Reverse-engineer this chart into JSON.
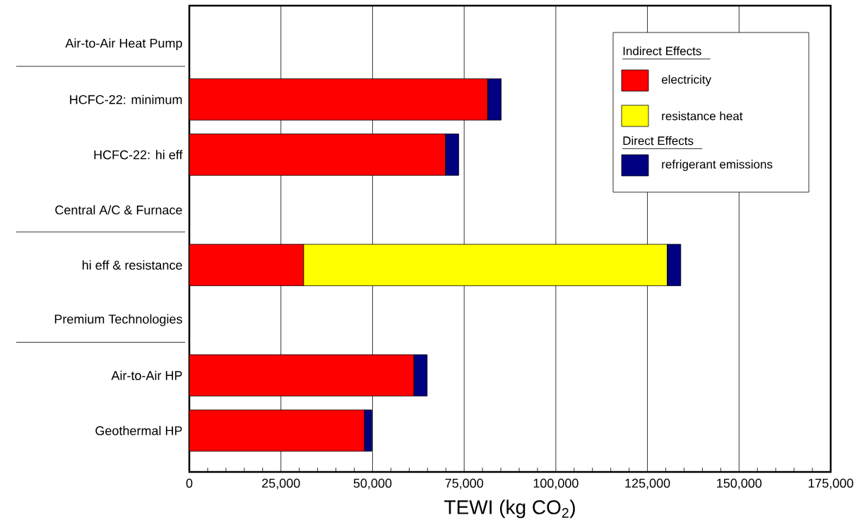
{
  "chart_data": {
    "type": "bar",
    "orientation": "horizontal",
    "stacked": true,
    "xlabel": "TEWI (kg CO$_{2}$)",
    "legend_title": "Indirect Effects",
    "annotations": [
      "Direct Effects"
    ],
    "categories": [
      "Air-to-Air Heat Pump",
      "HCFC-22: minimum",
      "HCFC-22: hi eff",
      "Central A/C & Furnace",
      "hi eff & resistance",
      "Premium Technologies",
      "Air-to-Air HP",
      "Geothermal HP"
    ],
    "series": [
      {
        "name": "electricity",
        "color": "#ff0000",
        "values": [
          null,
          81400,
          69900,
          null,
          31200,
          null,
          61300,
          47800
        ]
      },
      {
        "name": "resistance heat",
        "color": "#ffff00",
        "values": [
          null,
          null,
          null,
          null,
          99200,
          null,
          null,
          null
        ]
      },
      {
        "name": "refrigerant emissions",
        "color": "#000080",
        "values": [
          null,
          3700,
          3600,
          null,
          3700,
          null,
          3600,
          2000
        ]
      }
    ],
    "xlim": [
      0,
      175000
    ],
    "xticks": [
      0,
      {
        "value": 25000,
        "label": "25,000"
      },
      {
        "value": 50000,
        "label": "50,000"
      },
      {
        "value": 75000,
        "label": "75,000"
      },
      {
        "value": 100000,
        "label": "100,000"
      },
      {
        "value": 125000,
        "label": "125,000"
      },
      {
        "value": 150000,
        "label": "150,000"
      },
      {
        "value": 175000,
        "label": "175,000"
      }
    ],
    "grid": "x",
    "legend": "top right"
  }
}
